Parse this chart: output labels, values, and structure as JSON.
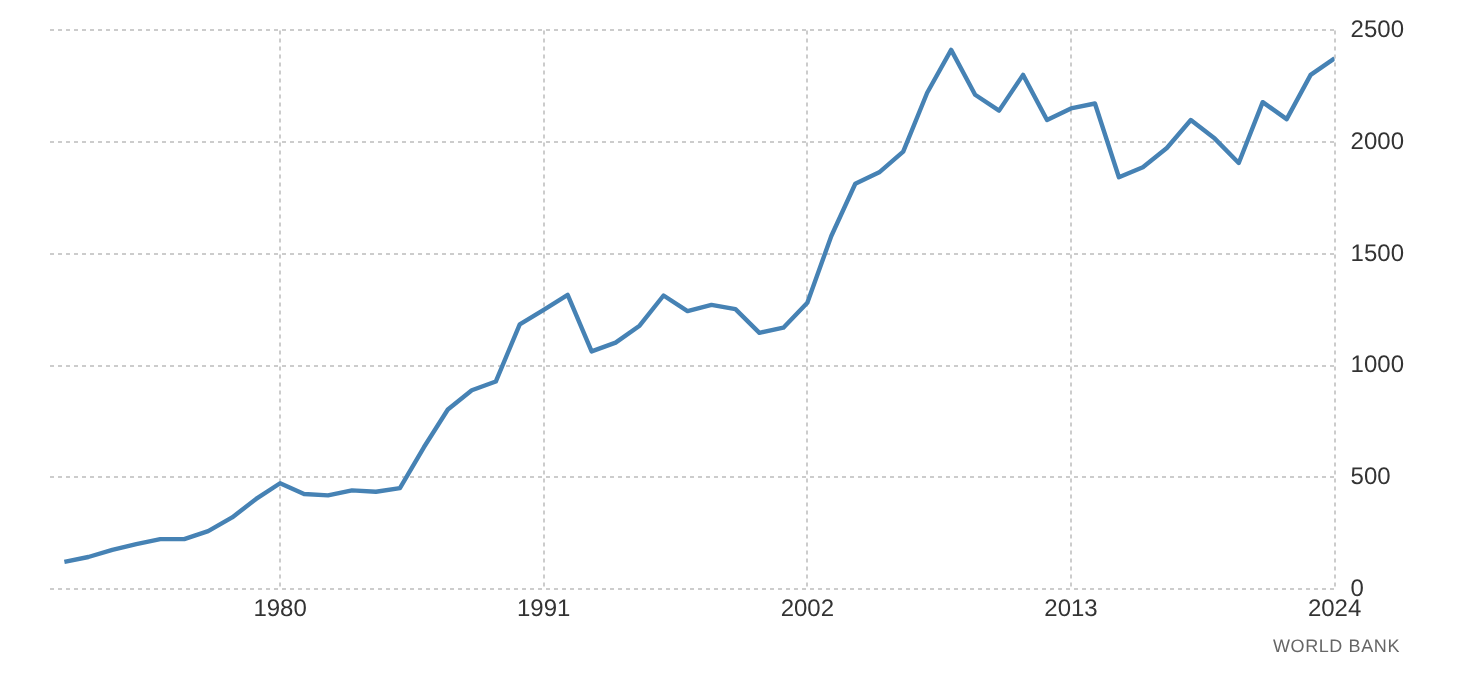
{
  "chart_data": {
    "type": "line",
    "x": [
      1971,
      1972,
      1973,
      1974,
      1975,
      1976,
      1977,
      1978,
      1979,
      1980,
      1981,
      1982,
      1983,
      1984,
      1985,
      1986,
      1987,
      1988,
      1989,
      1990,
      1991,
      1992,
      1993,
      1994,
      1995,
      1996,
      1997,
      1998,
      1999,
      2000,
      2001,
      2002,
      2003,
      2004,
      2005,
      2006,
      2007,
      2008,
      2009,
      2010,
      2011,
      2012,
      2013,
      2014,
      2015,
      2016,
      2017,
      2018,
      2019,
      2020,
      2021,
      2022,
      2023,
      2024
    ],
    "series": [
      {
        "color": "#4682b4",
        "values": [
          122,
          144,
          176,
          202,
          224,
          224,
          260,
          321,
          404,
          474,
          426,
          420,
          442,
          436,
          452,
          635,
          804,
          890,
          929,
          1185,
          1250,
          1317,
          1064,
          1103,
          1179,
          1314,
          1244,
          1272,
          1253,
          1147,
          1170,
          1282,
          1580,
          1814,
          1865,
          1958,
          2221,
          2413,
          2212,
          2141,
          2301,
          2099,
          2151,
          2173,
          1843,
          1888,
          1974,
          2099,
          2016,
          1907,
          2179,
          2103,
          2301,
          2375
        ]
      }
    ],
    "xlim": [
      1970.4,
      2024
    ],
    "xticks": [
      1980,
      1991,
      2002,
      2013,
      2024
    ],
    "ylim": [
      0,
      2500
    ],
    "yticks": [
      0,
      500,
      1000,
      1500,
      2000,
      2500
    ],
    "grid": true,
    "legend": false,
    "marker": "none",
    "line_style": "solid",
    "annotations": [
      "WORLD BANK"
    ]
  }
}
